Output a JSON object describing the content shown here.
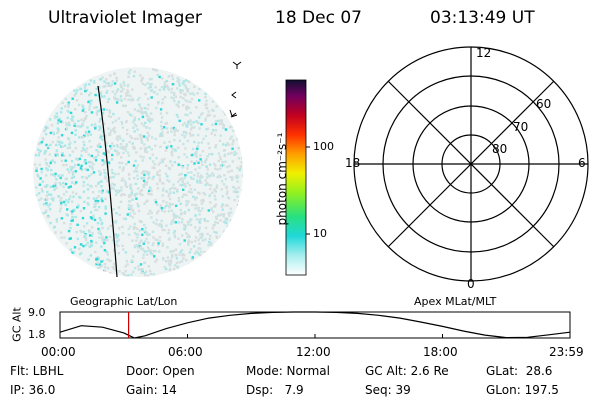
{
  "header": {
    "title": "Ultraviolet Imager",
    "date": "18 Dec 07",
    "time": "03:13:49 UT"
  },
  "colorbar": {
    "label": "photon cm⁻²s⁻¹",
    "ticks": [
      "100",
      "10"
    ]
  },
  "polar": {
    "mlt_labels": {
      "top": "12",
      "left": "18",
      "right": "6",
      "bottom": "0"
    },
    "lat_labels": [
      "60",
      "70",
      "80"
    ]
  },
  "strip": {
    "left_title": "Geographic Lat/Lon",
    "right_title": "Apex MLat/MLT",
    "ylabel": "GC Alt",
    "ymax": "9.0",
    "ymin": "1.8",
    "xticks": [
      "00:00",
      "06:00",
      "12:00",
      "18:00",
      "23:59"
    ]
  },
  "chart_data": {
    "type": "line",
    "title": "",
    "xlabel": "",
    "ylabel": "GC Alt",
    "ylim": [
      1.8,
      9.0
    ],
    "xlim_hours": [
      0,
      24
    ],
    "x": [
      0.0,
      1.0,
      2.0,
      3.0,
      3.5,
      4.0,
      5.0,
      6.0,
      7.0,
      8.0,
      9.0,
      10.0,
      11.0,
      12.0,
      13.0,
      14.0,
      15.0,
      16.0,
      17.0,
      18.0,
      19.0,
      20.0,
      21.0,
      22.0,
      23.0,
      24.0
    ],
    "series": [
      {
        "values": [
          3.4,
          5.2,
          4.8,
          3.2,
          1.8,
          2.4,
          4.4,
          6.0,
          7.3,
          8.1,
          8.6,
          8.9,
          9.0,
          9.0,
          8.9,
          8.6,
          8.1,
          7.3,
          6.2,
          5.0,
          3.7,
          2.6,
          1.9,
          2.0,
          2.7,
          3.4
        ]
      }
    ],
    "current_time_hours": 3.23,
    "grid": false
  },
  "footer": {
    "flt": "Flt: LBHL",
    "door": "Door: Open",
    "mode": "Mode: Normal",
    "gcalt": "GC Alt: 2.6 Re",
    "glat": "GLat:  28.6",
    "ip": "IP: 36.0",
    "gain": "Gain: 14",
    "dsp": "Dsp:   7.9",
    "seq": "Seq: 39",
    "glon": "GLon: 197.5"
  }
}
